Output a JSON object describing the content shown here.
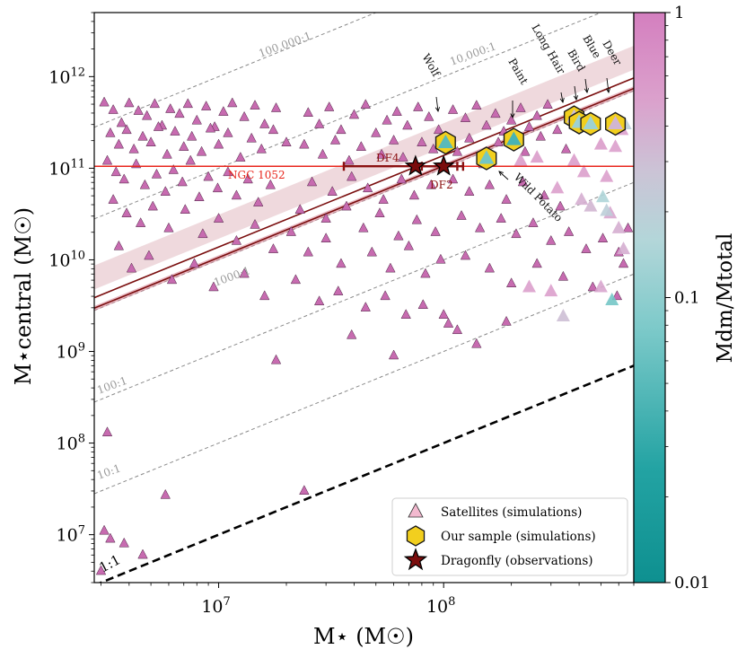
{
  "chart_data": {
    "type": "scatter",
    "xlabel": "M⋆ (M☉)",
    "ylabel": "M⋆central (M☉)",
    "x_scale": "log",
    "y_scale": "log",
    "xlim": [
      2800000.0,
      700000000.0
    ],
    "ylim": [
      3000000.0,
      5000000000000.0
    ],
    "x_ticks": [
      {
        "v": 10000000.0,
        "base": "10",
        "exp": "7"
      },
      {
        "v": 100000000.0,
        "base": "10",
        "exp": "8"
      }
    ],
    "y_ticks": [
      {
        "v": 10000000.0,
        "base": "10",
        "exp": "7"
      },
      {
        "v": 100000000.0,
        "base": "10",
        "exp": "8"
      },
      {
        "v": 1000000000.0,
        "base": "10",
        "exp": "9"
      },
      {
        "v": 10000000000.0,
        "base": "10",
        "exp": "10"
      },
      {
        "v": 100000000000.0,
        "base": "10",
        "exp": "11"
      },
      {
        "v": 1000000000000.0,
        "base": "10",
        "exp": "12"
      }
    ],
    "colorbar": {
      "label": "Mdm/Mtotal",
      "scale": "log",
      "range": [
        0.01,
        1
      ],
      "ticks": [
        "1",
        "0.1",
        "0.01"
      ],
      "colors": [
        "#d98fc6",
        "#b3b8cc",
        "#1aa5a5",
        "#0e9090"
      ]
    },
    "ratio_lines": [
      {
        "label": "1:1",
        "ratio": 1,
        "style": "thick-dashed"
      },
      {
        "label": "10:1",
        "ratio": 10,
        "style": "dashed"
      },
      {
        "label": "100:1",
        "ratio": 100,
        "style": "dashed"
      },
      {
        "label": "1000:1",
        "ratio": 1000,
        "style": "dashed"
      },
      {
        "label": "10,000:1",
        "ratio": 10000,
        "style": "dashed"
      },
      {
        "label": "100,000:1",
        "ratio": 100000,
        "style": "dashed"
      }
    ],
    "relation": {
      "slope": 1.0,
      "norm_upper": 1380,
      "norm_lower": 1060,
      "band_upper": [
        1700,
        3100
      ],
      "band_lower": [
        990,
        1120
      ]
    },
    "ngc1052": {
      "label": "NGC 1052",
      "y": 105000000000.0
    },
    "dragonfly": [
      {
        "name": "DF4",
        "x": 75000000.0,
        "y": 105000000000.0,
        "xerr": [
          36000000.0,
          115000000.0
        ]
      },
      {
        "name": "DF2",
        "x": 100000000.0,
        "y": 105000000000.0,
        "xerr": [
          80000000.0,
          122000000.0
        ]
      }
    ],
    "sample": [
      {
        "name": "Wolf",
        "x": 102000000.0,
        "y": 190000000000.0,
        "frac": 0.05
      },
      {
        "name": "Paint",
        "x": 205000000.0,
        "y": 205000000000.0,
        "frac": 0.04
      },
      {
        "name": "Wild Potato",
        "x": 155000000.0,
        "y": 128000000000.0,
        "frac": 0.07
      },
      {
        "name": "Long Hair",
        "x": 380000000.0,
        "y": 360000000000.0,
        "frac": 0.3
      },
      {
        "name": "Bird",
        "x": 400000000.0,
        "y": 315000000000.0,
        "frac": 0.12
      },
      {
        "name": "Blue",
        "x": 450000000.0,
        "y": 305000000000.0,
        "frac": 0.12
      },
      {
        "name": "Deer",
        "x": 580000000.0,
        "y": 305000000000.0,
        "frac": 0.35
      }
    ],
    "satellites": [
      [
        3100000.0,
        520000000000.0,
        1
      ],
      [
        3400000.0,
        430000000000.0,
        1
      ],
      [
        3700000.0,
        310000000000.0,
        1
      ],
      [
        4000000.0,
        510000000000.0,
        1
      ],
      [
        4400000.0,
        420000000000.0,
        1
      ],
      [
        4800000.0,
        370000000000.0,
        1
      ],
      [
        5200000.0,
        500000000000.0,
        1
      ],
      [
        5600000.0,
        290000000000.0,
        1
      ],
      [
        6100000.0,
        440000000000.0,
        1
      ],
      [
        6700000.0,
        390000000000.0,
        1
      ],
      [
        7300000.0,
        500000000000.0,
        1
      ],
      [
        8000000.0,
        330000000000.0,
        1
      ],
      [
        8800000.0,
        470000000000.0,
        1
      ],
      [
        9600000.0,
        280000000000.0,
        1
      ],
      [
        10500000.0,
        410000000000.0,
        1
      ],
      [
        11500000.0,
        510000000000.0,
        1
      ],
      [
        13000000.0,
        360000000000.0,
        1
      ],
      [
        14500000.0,
        480000000000.0,
        1
      ],
      [
        16000000.0,
        300000000000.0,
        1
      ],
      [
        18000000.0,
        450000000000.0,
        1
      ],
      [
        3300000.0,
        240000000000.0,
        1
      ],
      [
        3600000.0,
        180000000000.0,
        1
      ],
      [
        3900000.0,
        260000000000.0,
        1
      ],
      [
        4200000.0,
        160000000000.0,
        1
      ],
      [
        4600000.0,
        220000000000.0,
        1
      ],
      [
        5000000.0,
        190000000000.0,
        1
      ],
      [
        5400000.0,
        280000000000.0,
        1
      ],
      [
        5900000.0,
        140000000000.0,
        1
      ],
      [
        6400000.0,
        250000000000.0,
        1
      ],
      [
        7000000.0,
        170000000000.0,
        1
      ],
      [
        7600000.0,
        220000000000.0,
        1
      ],
      [
        8400000.0,
        150000000000.0,
        1
      ],
      [
        9200000.0,
        270000000000.0,
        1
      ],
      [
        10000000.0,
        180000000000.0,
        1
      ],
      [
        11000000.0,
        240000000000.0,
        1
      ],
      [
        12500000.0,
        130000000000.0,
        1
      ],
      [
        14000000.0,
        210000000000.0,
        1
      ],
      [
        15500000.0,
        160000000000.0,
        1
      ],
      [
        17500000.0,
        260000000000.0,
        1
      ],
      [
        20000000.0,
        190000000000.0,
        1
      ],
      [
        3200000.0,
        120000000000.0,
        1
      ],
      [
        3500000.0,
        90000000000.0,
        1
      ],
      [
        3800000.0,
        75000000000.0,
        1
      ],
      [
        4300000.0,
        110000000000.0,
        1
      ],
      [
        4700000.0,
        65000000000.0,
        1
      ],
      [
        5300000.0,
        85000000000.0,
        1
      ],
      [
        5800000.0,
        55000000000.0,
        1
      ],
      [
        6300000.0,
        95000000000.0,
        1
      ],
      [
        6900000.0,
        70000000000.0,
        1
      ],
      [
        7500000.0,
        120000000000.0,
        1
      ],
      [
        8200000.0,
        48000000000.0,
        1
      ],
      [
        9000000.0,
        80000000000.0,
        1
      ],
      [
        9900000.0,
        60000000000.0,
        1
      ],
      [
        11000000.0,
        90000000000.0,
        1
      ],
      [
        12000000.0,
        50000000000.0,
        1
      ],
      [
        13500000.0,
        75000000000.0,
        1
      ],
      [
        15000000.0,
        42000000000.0,
        1
      ],
      [
        17000000.0,
        65000000000.0,
        1
      ],
      [
        3400000.0,
        45000000000.0,
        1
      ],
      [
        3900000.0,
        32000000000.0,
        1
      ],
      [
        4500000.0,
        25000000000.0,
        1
      ],
      [
        5100000.0,
        38000000000.0,
        1
      ],
      [
        6000000.0,
        22000000000.0,
        1
      ],
      [
        7100000.0,
        35000000000.0,
        1
      ],
      [
        8500000.0,
        19000000000.0,
        1
      ],
      [
        10000000.0,
        28000000000.0,
        1
      ],
      [
        12000000.0,
        16000000000.0,
        1
      ],
      [
        14500000.0,
        24000000000.0,
        1
      ],
      [
        17500000.0,
        13000000000.0,
        1
      ],
      [
        21000000.0,
        20000000000.0,
        1
      ],
      [
        25000000.0,
        12000000000.0,
        1
      ],
      [
        30000000.0,
        17000000000.0,
        1
      ],
      [
        35000000.0,
        9000000000.0,
        1
      ],
      [
        3600000.0,
        14000000000.0,
        1
      ],
      [
        4100000.0,
        8000000000.0,
        1
      ],
      [
        4900000.0,
        11000000000.0,
        1
      ],
      [
        6200000.0,
        6000000000.0,
        1
      ],
      [
        7800000.0,
        9000000000.0,
        1
      ],
      [
        9500000.0,
        5000000000.0,
        1
      ],
      [
        13000000.0,
        7000000000.0,
        1
      ],
      [
        16000000.0,
        4000000000.0,
        1
      ],
      [
        22000000.0,
        6000000000.0,
        1
      ],
      [
        28000000.0,
        3500000000.0,
        1
      ],
      [
        34000000.0,
        4500000000.0,
        1
      ],
      [
        45000000.0,
        3000000000.0,
        1
      ],
      [
        25000000.0,
        400000000000.0,
        1
      ],
      [
        28000000.0,
        300000000000.0,
        1
      ],
      [
        31000000.0,
        460000000000.0,
        1
      ],
      [
        35000000.0,
        260000000000.0,
        1
      ],
      [
        40000000.0,
        380000000000.0,
        1
      ],
      [
        45000000.0,
        490000000000.0,
        1
      ],
      [
        50000000.0,
        240000000000.0,
        1
      ],
      [
        56000000.0,
        330000000000.0,
        1
      ],
      [
        62000000.0,
        410000000000.0,
        1
      ],
      [
        69000000.0,
        290000000000.0,
        1
      ],
      [
        77000000.0,
        460000000000.0,
        1
      ],
      [
        86000000.0,
        360000000000.0,
        1
      ],
      [
        95000000.0,
        260000000000.0,
        1
      ],
      [
        24000000.0,
        180000000000.0,
        1
      ],
      [
        29000000.0,
        140000000000.0,
        1
      ],
      [
        33000000.0,
        200000000000.0,
        1
      ],
      [
        38000000.0,
        120000000000.0,
        1
      ],
      [
        43000000.0,
        170000000000.0,
        1
      ],
      [
        53000000.0,
        140000000000.0,
        1
      ],
      [
        60000000.0,
        200000000000.0,
        1
      ],
      [
        66000000.0,
        130000000000.0,
        1
      ],
      [
        80000000.0,
        190000000000.0,
        1
      ],
      [
        90000000.0,
        160000000000.0,
        1
      ],
      [
        26000000.0,
        70000000000.0,
        1
      ],
      [
        32000000.0,
        55000000000.0,
        1
      ],
      [
        39000000.0,
        80000000000.0,
        1
      ],
      [
        46000000.0,
        60000000000.0,
        1
      ],
      [
        54000000.0,
        45000000000.0,
        1
      ],
      [
        65000000.0,
        75000000000.0,
        1
      ],
      [
        74000000.0,
        50000000000.0,
        1
      ],
      [
        88000000.0,
        65000000000.0,
        1
      ],
      [
        23000000.0,
        35000000000.0,
        1
      ],
      [
        30000000.0,
        28000000000.0,
        1
      ],
      [
        37000000.0,
        38000000000.0,
        1
      ],
      [
        44000000.0,
        22000000000.0,
        1
      ],
      [
        52000000.0,
        32000000000.0,
        1
      ],
      [
        63000000.0,
        18000000000.0,
        1
      ],
      [
        76000000.0,
        27000000000.0,
        1
      ],
      [
        92000000.0,
        20000000000.0,
        1
      ],
      [
        48000000.0,
        12000000000.0,
        1
      ],
      [
        58000000.0,
        8000000000.0,
        1
      ],
      [
        70000000.0,
        14000000000.0,
        1
      ],
      [
        83000000.0,
        7000000000.0,
        1
      ],
      [
        97000000.0,
        10000000000.0,
        1
      ],
      [
        55000000.0,
        4000000000.0,
        1
      ],
      [
        68000000.0,
        2500000000.0,
        1
      ],
      [
        81000000.0,
        3200000000.0,
        1
      ],
      [
        105000000.0,
        2000000000.0,
        1
      ],
      [
        60000000.0,
        900000000.0,
        1
      ],
      [
        24000000.0,
        30000000.0,
        1
      ],
      [
        18000000.0,
        800000000.0,
        1
      ],
      [
        39000000.0,
        1500000000.0,
        1
      ],
      [
        3200000.0,
        130000000.0,
        1
      ],
      [
        3100000.0,
        11000000.0,
        1
      ],
      [
        3300000.0,
        9000000.0,
        1
      ],
      [
        3800000.0,
        8000000.0,
        1
      ],
      [
        4600000.0,
        6000000.0,
        1
      ],
      [
        5800000.0,
        27000000.0,
        1
      ],
      [
        3000000.0,
        4000000.0,
        1
      ],
      [
        110000000.0,
        430000000000.0,
        1
      ],
      [
        125000000.0,
        350000000000.0,
        1
      ],
      [
        140000000.0,
        480000000000.0,
        1
      ],
      [
        155000000.0,
        290000000000.0,
        1
      ],
      [
        170000000.0,
        390000000000.0,
        1
      ],
      [
        185000000.0,
        250000000000.0,
        1
      ],
      [
        200000000.0,
        330000000000.0,
        1
      ],
      [
        220000000.0,
        450000000000.0,
        1
      ],
      [
        240000000.0,
        280000000000.0,
        1
      ],
      [
        260000000.0,
        370000000000.0,
        1
      ],
      [
        290000000.0,
        490000000000.0,
        1
      ],
      [
        320000000.0,
        260000000000.0,
        1
      ],
      [
        115000000.0,
        150000000000.0,
        1
      ],
      [
        130000000.0,
        210000000000.0,
        1
      ],
      [
        150000000.0,
        110000000000.0,
        1
      ],
      [
        175000000.0,
        190000000000.0,
        1
      ],
      [
        230000000.0,
        150000000000.0,
        1
      ],
      [
        270000000.0,
        220000000000.0,
        1
      ],
      [
        350000000.0,
        160000000000.0,
        1
      ],
      [
        110000000.0,
        75000000000.0,
        1
      ],
      [
        130000000.0,
        55000000000.0,
        1
      ],
      [
        160000000.0,
        65000000000.0,
        1
      ],
      [
        190000000.0,
        45000000000.0,
        1
      ],
      [
        225000000.0,
        70000000000.0,
        1
      ],
      [
        280000000.0,
        50000000000.0,
        1
      ],
      [
        330000000.0,
        38000000000.0,
        1
      ],
      [
        120000000.0,
        30000000000.0,
        1
      ],
      [
        145000000.0,
        22000000000.0,
        1
      ],
      [
        180000000.0,
        28000000000.0,
        1
      ],
      [
        210000000.0,
        19000000000.0,
        1
      ],
      [
        250000000.0,
        25000000000.0,
        1
      ],
      [
        300000000.0,
        16000000000.0,
        1
      ],
      [
        360000000.0,
        20000000000.0,
        1
      ],
      [
        430000000.0,
        13000000000.0,
        1
      ],
      [
        510000000.0,
        17000000000.0,
        1
      ],
      [
        600000000.0,
        12000000000.0,
        1
      ],
      [
        125000000.0,
        11000000000.0,
        1
      ],
      [
        160000000.0,
        8000000000.0,
        1
      ],
      [
        200000000.0,
        5500000000.0,
        1
      ],
      [
        260000000.0,
        9000000000.0,
        1
      ],
      [
        340000000.0,
        6500000000.0,
        1
      ],
      [
        460000000.0,
        5000000000.0,
        1
      ],
      [
        590000000.0,
        4000000000.0,
        1
      ],
      [
        115000000.0,
        1700000000.0,
        1
      ],
      [
        140000000.0,
        1200000000.0,
        1
      ],
      [
        190000000.0,
        2100000000.0,
        1
      ],
      [
        630000000.0,
        9000000000.0,
        1
      ],
      [
        660000000.0,
        22000000000.0,
        1
      ],
      [
        100000000.0,
        2500000000.0,
        1
      ],
      [
        220000000.0,
        120000000000.0,
        0.55
      ],
      [
        260000000.0,
        130000000000.0,
        0.55
      ],
      [
        380000000.0,
        120000000000.0,
        0.55
      ],
      [
        500000000.0,
        180000000000.0,
        0.55
      ],
      [
        580000000.0,
        170000000000.0,
        0.5
      ],
      [
        420000000.0,
        90000000000.0,
        0.5
      ],
      [
        530000000.0,
        80000000000.0,
        0.5
      ],
      [
        620000000.0,
        260000000000.0,
        0.5
      ],
      [
        160000000.0,
        120000000000.0,
        0.55
      ],
      [
        320000000.0,
        60000000000.0,
        0.5
      ],
      [
        450000000.0,
        38000000000.0,
        0.35
      ],
      [
        550000000.0,
        32000000000.0,
        0.45
      ],
      [
        510000000.0,
        48000000000.0,
        0.15
      ],
      [
        530000000.0,
        34000000000.0,
        0.2
      ],
      [
        600000000.0,
        22000000000.0,
        0.4
      ],
      [
        560000000.0,
        3600000000.0,
        0.07
      ],
      [
        340000000.0,
        2400000000.0,
        0.3
      ],
      [
        240000000.0,
        5000000000.0,
        0.5
      ],
      [
        410000000.0,
        45000000000.0,
        0.4
      ],
      [
        630000000.0,
        13000000000.0,
        0.4
      ],
      [
        500000000.0,
        5000000000.0,
        0.45
      ],
      [
        640000000.0,
        300000000000.0,
        0.2
      ],
      [
        300000000.0,
        4500000000.0,
        0.5
      ]
    ],
    "legend": {
      "placement": "bottom-right",
      "entries": [
        {
          "label": "Satellites (simulations)",
          "marker": "triangle"
        },
        {
          "label": "Our sample (simulations)",
          "marker": "hexagon"
        },
        {
          "label": "Dragonfly (observations)",
          "marker": "star"
        }
      ]
    }
  }
}
